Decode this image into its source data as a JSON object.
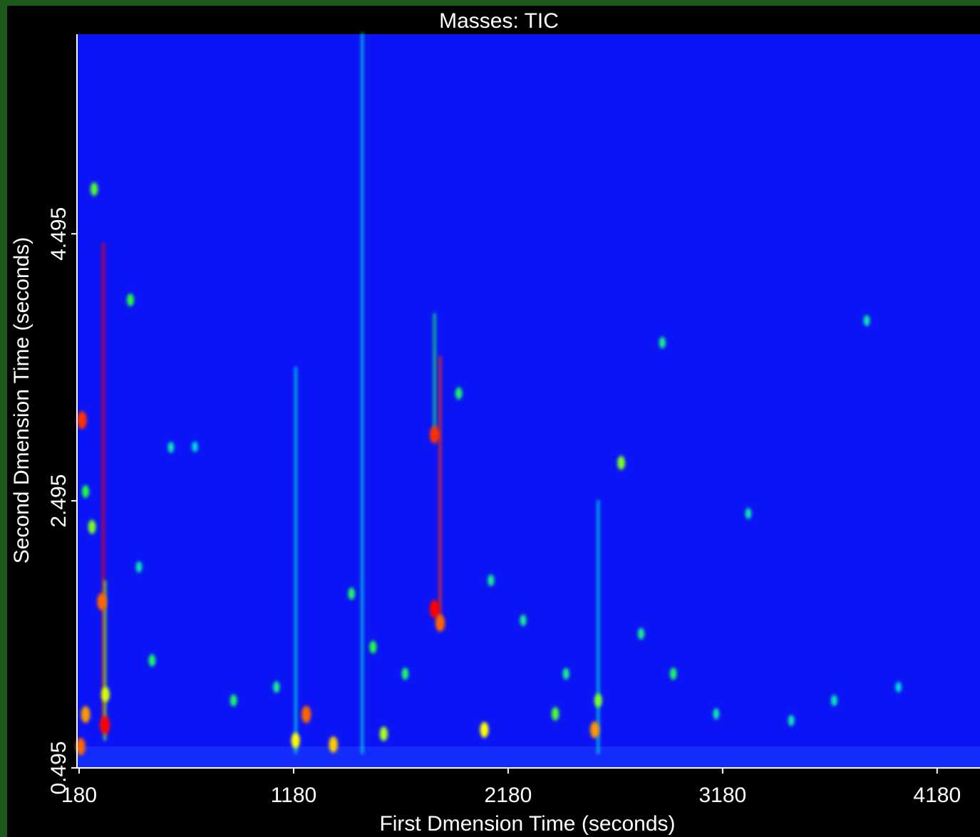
{
  "chart_data": {
    "type": "heatmap",
    "title": "Masses:  TIC",
    "x_label": "First Dmension Time (seconds)",
    "y_label": "Second Dmension Time (seconds)",
    "xlim": [
      170,
      4380
    ],
    "ylim": [
      0.495,
      5.99
    ],
    "xticks": [
      180,
      1180,
      2180,
      3180,
      4180
    ],
    "yticks": [
      0.495,
      2.495,
      4.495
    ],
    "background": "#0a14f5",
    "colormap": [
      "#0a14f5",
      "#00e0ff",
      "#20ff40",
      "#ffff00",
      "#ff0000"
    ],
    "peaks": {
      "x": [
        300,
        187,
        210,
        303,
        286,
        193,
        240,
        210,
        250,
        419,
        608,
        1239,
        1837,
        1837,
        1863,
        2069,
        2584,
        2707,
        2899,
        3852,
        1365,
        1189,
        459,
        520,
        1550,
        1700,
        2250,
        2400,
        2950,
        3150,
        3500,
        3700,
        1100,
        1450,
        1950,
        2600,
        2800,
        3300,
        4000,
        720,
        900,
        1600,
        2100,
        2450
      ],
      "y": [
        0.815,
        0.655,
        0.895,
        1.045,
        1.74,
        3.1,
        2.3,
        2.565,
        4.83,
        4.0,
        2.895,
        0.895,
        2.99,
        1.685,
        1.58,
        0.78,
        0.78,
        2.78,
        3.68,
        3.845,
        0.67,
        0.7,
        2.0,
        1.3,
        1.4,
        1.2,
        1.6,
        0.9,
        1.2,
        0.9,
        0.85,
        1.0,
        1.1,
        1.8,
        3.3,
        1.0,
        1.5,
        2.4,
        1.1,
        2.9,
        1.0,
        0.75,
        1.9,
        1.2
      ],
      "values": [
        1.0,
        0.9,
        0.85,
        0.7,
        0.9,
        0.95,
        0.6,
        0.5,
        0.55,
        0.5,
        0.35,
        0.9,
        0.95,
        1.0,
        0.9,
        0.75,
        0.85,
        0.6,
        0.4,
        0.35,
        0.8,
        0.75,
        0.35,
        0.45,
        0.5,
        0.45,
        0.4,
        0.55,
        0.45,
        0.35,
        0.35,
        0.35,
        0.4,
        0.45,
        0.45,
        0.6,
        0.4,
        0.35,
        0.3,
        0.3,
        0.45,
        0.65,
        0.4,
        0.4
      ]
    },
    "streaks": {
      "x": [
        293,
        1863,
        300,
        1837,
        1190,
        1500,
        2600
      ],
      "y0": [
        0.805,
        1.55,
        0.7,
        2.99,
        0.6,
        0.6,
        0.6
      ],
      "y1": [
        4.43,
        3.58,
        1.9,
        3.9,
        3.5,
        6.0,
        2.5
      ],
      "values": [
        1.0,
        0.95,
        0.6,
        0.45,
        0.3,
        0.3,
        0.3
      ]
    }
  }
}
